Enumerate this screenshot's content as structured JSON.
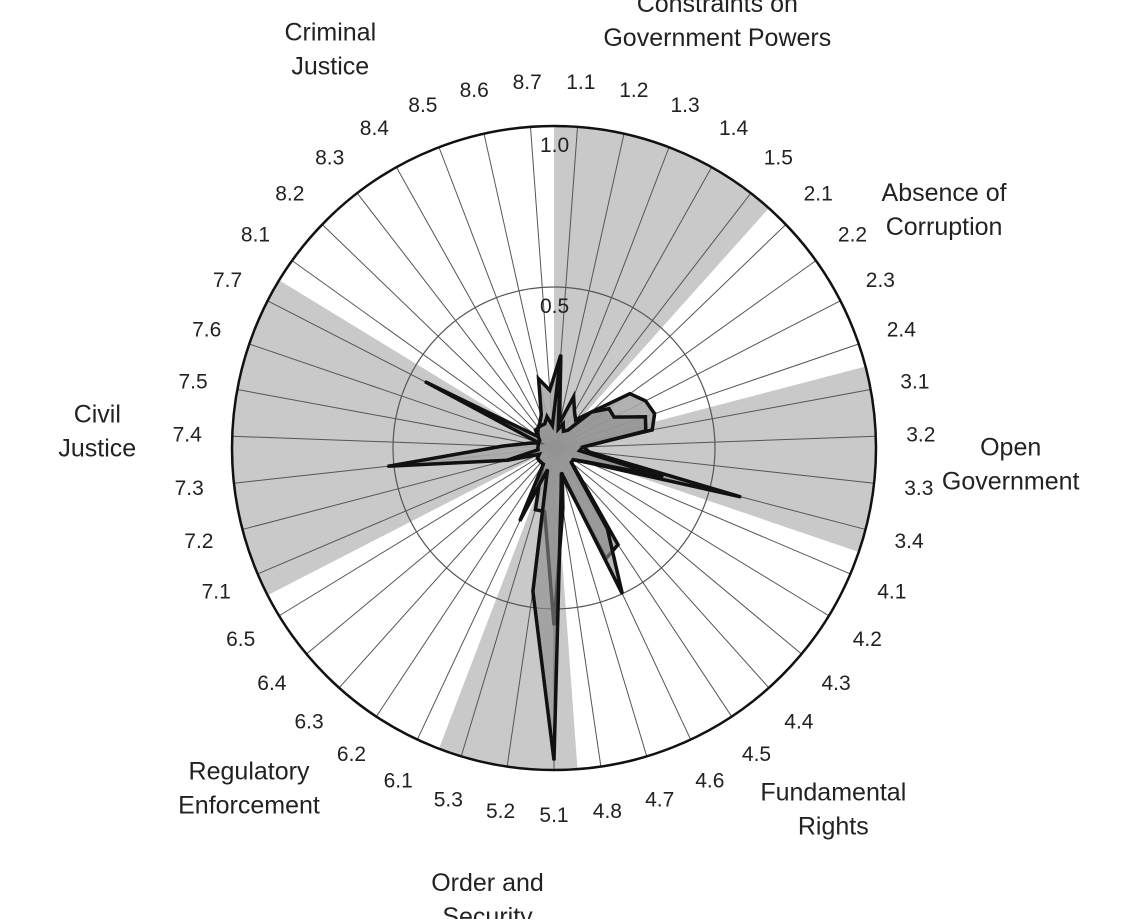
{
  "chart_data": {
    "type": "radar",
    "rlim": [
      0,
      1.0
    ],
    "ring_labels": [
      "0.5",
      "1.0"
    ],
    "grid": true,
    "shaded_groups": [
      "Constraints on Government Powers",
      "Open Government",
      "Order and Security",
      "Civil Justice"
    ],
    "categories": [
      "1.1",
      "1.2",
      "1.3",
      "1.4",
      "1.5",
      "2.1",
      "2.2",
      "2.3",
      "2.4",
      "3.1",
      "3.2",
      "3.3",
      "3.4",
      "4.1",
      "4.2",
      "4.3",
      "4.4",
      "4.5",
      "4.6",
      "4.7",
      "4.8",
      "5.1",
      "5.2",
      "5.3",
      "6.1",
      "6.2",
      "6.3",
      "6.4",
      "6.5",
      "7.1",
      "7.2",
      "7.3",
      "7.4",
      "7.5",
      "7.6",
      "7.7",
      "8.1",
      "8.2",
      "8.3",
      "8.4",
      "8.5",
      "8.6",
      "8.7"
    ],
    "groups": [
      {
        "name": "Constraints on Government Powers",
        "lines": [
          "Constraints on",
          "Government Powers"
        ],
        "start": 0,
        "count": 5
      },
      {
        "name": "Absence of Corruption",
        "lines": [
          "Absence of",
          "Corruption"
        ],
        "start": 5,
        "count": 4
      },
      {
        "name": "Open Government",
        "lines": [
          "Open",
          "Government"
        ],
        "start": 9,
        "count": 4
      },
      {
        "name": "Fundamental Rights",
        "lines": [
          "Fundamental",
          "Rights"
        ],
        "start": 13,
        "count": 8
      },
      {
        "name": "Order and Security",
        "lines": [
          "Order and",
          "Security"
        ],
        "start": 21,
        "count": 3
      },
      {
        "name": "Regulatory Enforcement",
        "lines": [
          "Regulatory",
          "Enforcement"
        ],
        "start": 24,
        "count": 5
      },
      {
        "name": "Civil Justice",
        "lines": [
          "Civil",
          "Justice"
        ],
        "start": 29,
        "count": 7
      },
      {
        "name": "Criminal Justice",
        "lines": [
          "Criminal",
          "Justice"
        ],
        "start": 36,
        "count": 7
      }
    ],
    "series": [
      {
        "values": [
          0.29,
          0.08,
          0.17,
          0.13,
          0.11,
          0.16,
          0.29,
          0.32,
          0.33,
          0.31,
          0.09,
          0.11,
          0.6,
          0.12,
          0.07,
          0.07,
          0.12,
          0.36,
          0.38,
          0.09,
          0.19,
          0.55,
          0.2,
          0.2,
          0.1,
          0.06,
          0.06,
          0.06,
          0.06,
          0.05,
          0.15,
          0.52,
          0.16,
          0.08,
          0.05,
          0.45,
          0.06,
          0.08,
          0.08,
          0.09,
          0.11,
          0.22,
          0.18
        ]
      },
      {
        "values": [
          0.29,
          0.06,
          0.08,
          0.06,
          0.07,
          0.16,
          0.21,
          0.21,
          0.3,
          0.29,
          0.09,
          0.08,
          0.35,
          0.11,
          0.07,
          0.07,
          0.11,
          0.3,
          0.5,
          0.08,
          0.15,
          0.97,
          0.45,
          0.07,
          0.25,
          0.06,
          0.06,
          0.06,
          0.06,
          0.05,
          0.15,
          0.05,
          0.05,
          0.05,
          0.05,
          0.05,
          0.06,
          0.07,
          0.08,
          0.08,
          0.08,
          0.1,
          0.07
        ]
      }
    ],
    "colors": {
      "shade": "#c9c9c9",
      "series_fill": "#a8a8a8",
      "outline": "#111111",
      "grid": "#555555"
    }
  }
}
